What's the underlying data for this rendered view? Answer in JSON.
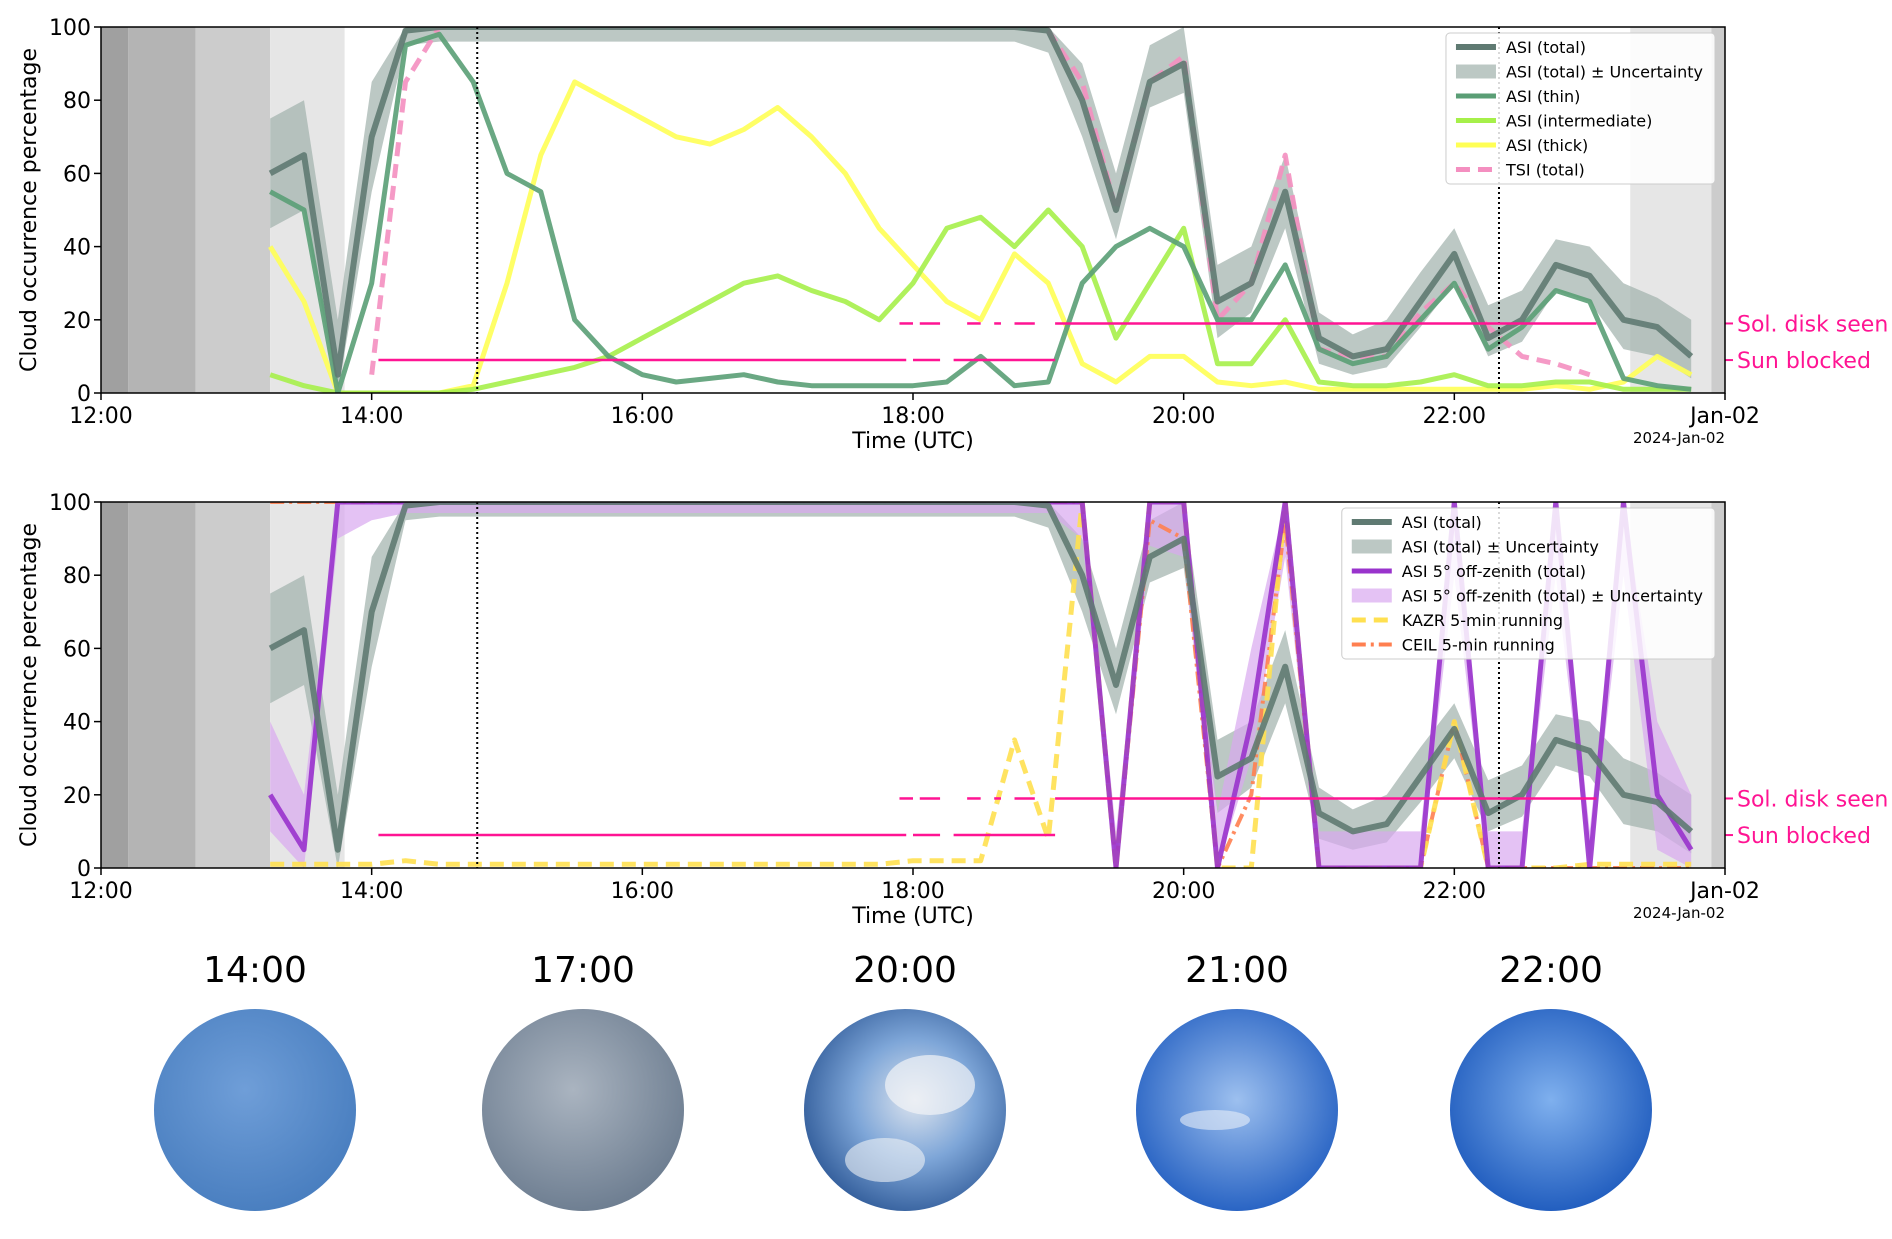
{
  "chart_data": [
    {
      "type": "line",
      "xlabel": "Time (UTC)",
      "ylabel": "Cloud occurrence percentage",
      "date_label": "2024-Jan-02",
      "xlim": [
        12,
        24
      ],
      "ylim": [
        0,
        100
      ],
      "xticks": [
        {
          "value": 12,
          "label": "12:00"
        },
        {
          "value": 14,
          "label": "14:00"
        },
        {
          "value": 16,
          "label": "16:00"
        },
        {
          "value": 18,
          "label": "18:00"
        },
        {
          "value": 20,
          "label": "20:00"
        },
        {
          "value": 22,
          "label": "22:00"
        },
        {
          "value": 24,
          "label": "Jan-02"
        }
      ],
      "yticks": [
        0,
        20,
        40,
        60,
        80,
        100
      ],
      "legend": "upper right",
      "shaded_spans": [
        {
          "start": 12,
          "end": 12.2,
          "color": "#a0a0a0"
        },
        {
          "start": 12.2,
          "end": 12.7,
          "color": "#b4b4b4"
        },
        {
          "start": 12.7,
          "end": 13.25,
          "color": "#cccccc"
        },
        {
          "start": 13.25,
          "end": 13.8,
          "color": "#e6e6e6"
        },
        {
          "start": 23.3,
          "end": 23.9,
          "color": "#e6e6e6"
        },
        {
          "start": 23.9,
          "end": 24,
          "color": "#cccccc"
        }
      ],
      "vlines": [
        14.78,
        22.33
      ],
      "hlines": [
        {
          "label": "Sol. disk seen",
          "y": 19,
          "color": "#ff1493",
          "segments": [
            [
              17.9,
              18.0
            ],
            [
              18.05,
              18.2
            ],
            [
              18.4,
              18.5
            ],
            [
              18.6,
              18.65
            ],
            [
              18.75,
              18.9
            ],
            [
              19.05,
              23.05
            ]
          ]
        },
        {
          "label": "Sun blocked",
          "y": 9,
          "color": "#ff1493",
          "segments": [
            [
              14.05,
              17.95
            ],
            [
              18.0,
              18.2
            ],
            [
              18.3,
              19.05
            ]
          ]
        }
      ],
      "x": [
        13.25,
        13.5,
        13.75,
        14,
        14.25,
        14.5,
        14.75,
        15,
        15.25,
        15.5,
        15.75,
        16,
        16.25,
        16.5,
        16.75,
        17,
        17.25,
        17.5,
        17.75,
        18,
        18.25,
        18.5,
        18.75,
        19,
        19.25,
        19.5,
        19.75,
        20,
        20.25,
        20.5,
        20.75,
        21,
        21.25,
        21.5,
        21.75,
        22,
        22.25,
        22.5,
        22.75,
        23,
        23.25,
        23.5,
        23.75
      ],
      "series": [
        {
          "name": "ASI (total)",
          "color": "#5f7a72",
          "width": 6,
          "values": [
            60,
            65,
            5,
            70,
            99,
            100,
            100,
            100,
            100,
            100,
            100,
            100,
            100,
            100,
            100,
            100,
            100,
            100,
            100,
            100,
            100,
            100,
            100,
            99,
            80,
            50,
            85,
            90,
            25,
            30,
            55,
            15,
            10,
            12,
            25,
            38,
            15,
            20,
            35,
            32,
            20,
            18,
            10
          ]
        },
        {
          "name": "ASI (total) ± Uncertainty",
          "color": "#9fb0ab",
          "kind": "band",
          "lower": [
            45,
            50,
            0,
            55,
            95,
            96,
            96,
            96,
            96,
            96,
            96,
            96,
            96,
            96,
            96,
            96,
            96,
            96,
            96,
            96,
            96,
            96,
            96,
            93,
            70,
            42,
            78,
            82,
            15,
            22,
            45,
            8,
            5,
            7,
            18,
            30,
            10,
            14,
            28,
            25,
            12,
            10,
            4
          ],
          "upper": [
            75,
            80,
            20,
            85,
            100,
            100,
            100,
            100,
            100,
            100,
            100,
            100,
            100,
            100,
            100,
            100,
            100,
            100,
            100,
            100,
            100,
            100,
            100,
            100,
            90,
            60,
            95,
            100,
            35,
            40,
            65,
            22,
            16,
            20,
            33,
            45,
            24,
            28,
            42,
            40,
            30,
            26,
            20
          ]
        },
        {
          "name": "ASI (thin)",
          "color": "#5a9e75",
          "width": 5,
          "values": [
            55,
            50,
            0,
            30,
            95,
            98,
            85,
            60,
            55,
            20,
            10,
            5,
            3,
            4,
            5,
            3,
            2,
            2,
            2,
            2,
            3,
            10,
            2,
            3,
            30,
            40,
            45,
            40,
            20,
            20,
            35,
            12,
            8,
            10,
            20,
            30,
            12,
            18,
            28,
            25,
            4,
            2,
            1
          ]
        },
        {
          "name": "ASI (intermediate)",
          "color": "#a6f04a",
          "width": 5,
          "values": [
            5,
            2,
            0,
            0,
            0,
            0,
            1,
            3,
            5,
            7,
            10,
            15,
            20,
            25,
            30,
            32,
            28,
            25,
            20,
            30,
            45,
            48,
            40,
            50,
            40,
            15,
            30,
            45,
            8,
            8,
            20,
            3,
            2,
            2,
            3,
            5,
            2,
            2,
            3,
            3,
            1,
            1,
            1
          ]
        },
        {
          "name": "ASI (thick)",
          "color": "#ffff55",
          "width": 5,
          "values": [
            40,
            25,
            0,
            0,
            0,
            0,
            2,
            30,
            65,
            85,
            80,
            75,
            70,
            68,
            72,
            78,
            70,
            60,
            45,
            35,
            25,
            20,
            38,
            30,
            8,
            3,
            10,
            10,
            3,
            2,
            3,
            1,
            1,
            1,
            1,
            1,
            1,
            1,
            2,
            1,
            3,
            10,
            5
          ]
        },
        {
          "name": "TSI (total)",
          "color": "#f48fc0",
          "width": 5,
          "dash": "14 8",
          "values": [
            null,
            null,
            null,
            5,
            85,
            100,
            100,
            100,
            100,
            100,
            100,
            100,
            100,
            100,
            100,
            100,
            100,
            100,
            100,
            100,
            100,
            100,
            100,
            99,
            85,
            50,
            85,
            92,
            20,
            30,
            65,
            12,
            10,
            10,
            22,
            30,
            18,
            10,
            8,
            5,
            null,
            null,
            null
          ]
        }
      ]
    },
    {
      "type": "line",
      "xlabel": "Time (UTC)",
      "ylabel": "Cloud occurrence percentage",
      "date_label": "2024-Jan-02",
      "xlim": [
        12,
        24
      ],
      "ylim": [
        0,
        100
      ],
      "xticks": [
        {
          "value": 12,
          "label": "12:00"
        },
        {
          "value": 14,
          "label": "14:00"
        },
        {
          "value": 16,
          "label": "16:00"
        },
        {
          "value": 18,
          "label": "18:00"
        },
        {
          "value": 20,
          "label": "20:00"
        },
        {
          "value": 22,
          "label": "22:00"
        },
        {
          "value": 24,
          "label": "Jan-02"
        }
      ],
      "yticks": [
        0,
        20,
        40,
        60,
        80,
        100
      ],
      "legend": "upper right",
      "shaded_spans": [
        {
          "start": 12,
          "end": 12.2,
          "color": "#a0a0a0"
        },
        {
          "start": 12.2,
          "end": 12.7,
          "color": "#b4b4b4"
        },
        {
          "start": 12.7,
          "end": 13.25,
          "color": "#cccccc"
        },
        {
          "start": 13.25,
          "end": 13.8,
          "color": "#e6e6e6"
        },
        {
          "start": 23.3,
          "end": 23.9,
          "color": "#e6e6e6"
        },
        {
          "start": 23.9,
          "end": 24,
          "color": "#cccccc"
        }
      ],
      "vlines": [
        14.78,
        22.33
      ],
      "hlines": [
        {
          "label": "Sol. disk seen",
          "y": 19,
          "color": "#ff1493",
          "segments": [
            [
              17.9,
              18.0
            ],
            [
              18.05,
              18.2
            ],
            [
              18.4,
              18.5
            ],
            [
              18.6,
              18.65
            ],
            [
              18.75,
              18.9
            ],
            [
              19.05,
              23.05
            ]
          ]
        },
        {
          "label": "Sun blocked",
          "y": 9,
          "color": "#ff1493",
          "segments": [
            [
              14.05,
              17.95
            ],
            [
              18.0,
              18.2
            ],
            [
              18.3,
              19.05
            ]
          ]
        }
      ],
      "x": [
        13.25,
        13.5,
        13.75,
        14,
        14.25,
        14.5,
        14.75,
        15,
        15.25,
        15.5,
        15.75,
        16,
        16.25,
        16.5,
        16.75,
        17,
        17.25,
        17.5,
        17.75,
        18,
        18.25,
        18.5,
        18.75,
        19,
        19.25,
        19.5,
        19.75,
        20,
        20.25,
        20.5,
        20.75,
        21,
        21.25,
        21.5,
        21.75,
        22,
        22.25,
        22.5,
        22.75,
        23,
        23.25,
        23.5,
        23.75
      ],
      "series": [
        {
          "name": "ASI (total)",
          "color": "#5f7a72",
          "width": 6,
          "values": [
            60,
            65,
            5,
            70,
            99,
            100,
            100,
            100,
            100,
            100,
            100,
            100,
            100,
            100,
            100,
            100,
            100,
            100,
            100,
            100,
            100,
            100,
            100,
            99,
            80,
            50,
            85,
            90,
            25,
            30,
            55,
            15,
            10,
            12,
            25,
            38,
            15,
            20,
            35,
            32,
            20,
            18,
            10
          ]
        },
        {
          "name": "ASI (total) ± Uncertainty",
          "color": "#9fb0ab",
          "kind": "band",
          "lower": [
            45,
            50,
            0,
            55,
            95,
            96,
            96,
            96,
            96,
            96,
            96,
            96,
            96,
            96,
            96,
            96,
            96,
            96,
            96,
            96,
            96,
            96,
            96,
            93,
            70,
            42,
            78,
            82,
            15,
            22,
            45,
            8,
            5,
            7,
            18,
            30,
            10,
            14,
            28,
            25,
            12,
            10,
            4
          ],
          "upper": [
            75,
            80,
            20,
            85,
            100,
            100,
            100,
            100,
            100,
            100,
            100,
            100,
            100,
            100,
            100,
            100,
            100,
            100,
            100,
            100,
            100,
            100,
            100,
            100,
            90,
            60,
            95,
            100,
            35,
            40,
            65,
            22,
            16,
            20,
            33,
            45,
            24,
            28,
            42,
            40,
            30,
            26,
            20
          ]
        },
        {
          "name": "ASI 5° off-zenith (total)",
          "color": "#9933cc",
          "width": 5,
          "values": [
            20,
            5,
            100,
            100,
            100,
            100,
            100,
            100,
            100,
            100,
            100,
            100,
            100,
            100,
            100,
            100,
            100,
            100,
            100,
            100,
            100,
            100,
            100,
            100,
            100,
            0,
            100,
            100,
            0,
            40,
            100,
            0,
            0,
            0,
            0,
            100,
            0,
            0,
            100,
            0,
            100,
            20,
            5
          ]
        },
        {
          "name": "ASI 5° off-zenith (total) ± Uncertainty",
          "color": "#d8a8f0",
          "kind": "band",
          "lower": [
            10,
            0,
            90,
            95,
            97,
            97,
            97,
            97,
            97,
            97,
            97,
            97,
            97,
            97,
            97,
            97,
            97,
            97,
            97,
            97,
            97,
            97,
            97,
            97,
            90,
            0,
            88,
            85,
            0,
            30,
            85,
            0,
            0,
            0,
            0,
            80,
            0,
            0,
            80,
            0,
            80,
            5,
            0
          ],
          "upper": [
            40,
            20,
            100,
            100,
            100,
            100,
            100,
            100,
            100,
            100,
            100,
            100,
            100,
            100,
            100,
            100,
            100,
            100,
            100,
            100,
            100,
            100,
            100,
            100,
            100,
            10,
            100,
            100,
            15,
            60,
            100,
            10,
            10,
            10,
            10,
            100,
            10,
            10,
            100,
            10,
            100,
            40,
            20
          ]
        },
        {
          "name": "KAZR 5-min running",
          "color": "#ffe050",
          "width": 5,
          "dash": "14 8",
          "values": [
            1,
            1,
            1,
            1,
            2,
            1,
            1,
            1,
            1,
            1,
            1,
            1,
            1,
            1,
            1,
            1,
            1,
            1,
            1,
            2,
            2,
            2,
            35,
            8,
            100,
            0,
            100,
            100,
            0,
            0,
            100,
            0,
            0,
            0,
            0,
            40,
            0,
            0,
            0,
            1,
            1,
            1,
            1
          ]
        },
        {
          "name": "CEIL 5-min running",
          "color": "#ff7f50",
          "width": 4,
          "dash": "14 5 3 5",
          "values": [
            100,
            100,
            100,
            100,
            100,
            100,
            100,
            100,
            100,
            100,
            100,
            100,
            100,
            100,
            100,
            100,
            100,
            100,
            100,
            100,
            100,
            100,
            100,
            100,
            100,
            0,
            95,
            90,
            0,
            20,
            95,
            0,
            0,
            0,
            0,
            40,
            0,
            0,
            0,
            0,
            0,
            0,
            0
          ]
        }
      ]
    }
  ],
  "sky_images": [
    {
      "label": "14:00"
    },
    {
      "label": "17:00"
    },
    {
      "label": "20:00"
    },
    {
      "label": "21:00"
    },
    {
      "label": "22:00"
    }
  ]
}
